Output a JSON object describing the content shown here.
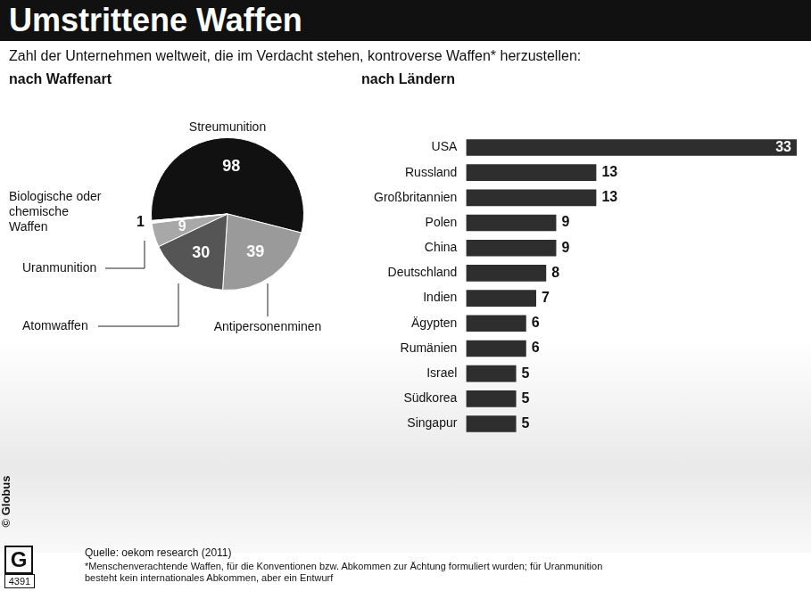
{
  "title": "Umstrittene Waffen",
  "subtitle": "Zahl der Unternehmen weltweit, die im Verdacht stehen, kontroverse Waffen* herzustellen:",
  "chart_data": [
    {
      "type": "pie",
      "title": "nach Waffenart",
      "categories": [
        "Streumunition",
        "Antipersonenminen",
        "Atomwaffen",
        "Uranmunition",
        "Biologische oder chemische Waffen"
      ],
      "values": [
        98,
        39,
        30,
        9,
        1
      ],
      "colors": [
        "#111111",
        "#9a9a9a",
        "#555555",
        "#a8a8a8",
        "#ffffff"
      ],
      "data_labels": true
    },
    {
      "type": "bar",
      "title": "nach Ländern",
      "orientation": "horizontal",
      "categories": [
        "USA",
        "Russland",
        "Großbritannien",
        "Polen",
        "China",
        "Deutschland",
        "Indien",
        "Ägypten",
        "Rumänien",
        "Israel",
        "Südkorea",
        "Singapur"
      ],
      "values": [
        33,
        13,
        13,
        9,
        9,
        8,
        7,
        6,
        6,
        5,
        5,
        5
      ],
      "color": "#2e2e2e",
      "xlim": [
        0,
        33
      ],
      "xticks": [],
      "grid": false,
      "data_labels": true,
      "tick_labels": "y"
    }
  ],
  "credit": "© Globus",
  "logo": "G",
  "graphic_number": 4391,
  "source": "Quelle: oekom research (2011)",
  "footnote": "*Menschenverachtende Waffen, für die Konventionen bzw. Abkommen zur Ächtung formuliert wurden; für Uranmunition besteht kein internationales Abkommen, aber ein Entwurf"
}
